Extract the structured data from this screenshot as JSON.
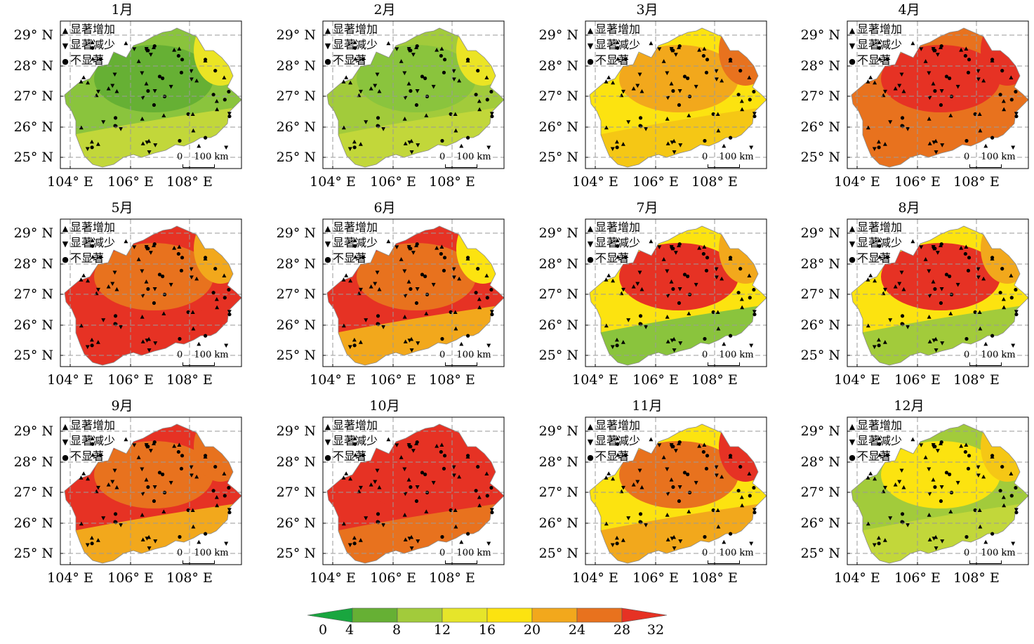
{
  "panels": [
    {
      "title": "1月",
      "colors": [
        "#8ac43d",
        "#66b034",
        "#c2d73a",
        "#ebe424"
      ]
    },
    {
      "title": "2月",
      "colors": [
        "#a2cb3b",
        "#8ac43d",
        "#c2d73a",
        "#ebe424"
      ]
    },
    {
      "title": "3月",
      "colors": [
        "#fce310",
        "#f2a81c",
        "#f5c715",
        "#e8721e"
      ]
    },
    {
      "title": "4月",
      "colors": [
        "#e8721e",
        "#e63224",
        "#e8721e",
        "#e63224"
      ]
    },
    {
      "title": "5月",
      "colors": [
        "#e63224",
        "#e8721e",
        "#e63224",
        "#f2a81c"
      ]
    },
    {
      "title": "6月",
      "colors": [
        "#e63224",
        "#e8721e",
        "#f2a81c",
        "#fce310"
      ]
    },
    {
      "title": "7月",
      "colors": [
        "#fce310",
        "#e63224",
        "#8ac43d",
        "#f2a81c"
      ]
    },
    {
      "title": "8月",
      "colors": [
        "#fce310",
        "#e63224",
        "#a2cb3b",
        "#f2a81c"
      ]
    },
    {
      "title": "9月",
      "colors": [
        "#e63224",
        "#e8721e",
        "#f2a81c",
        "#e8721e"
      ]
    },
    {
      "title": "10月",
      "colors": [
        "#e63224",
        "#e63224",
        "#e8721e",
        "#e63224"
      ]
    },
    {
      "title": "11月",
      "colors": [
        "#fce310",
        "#e8721e",
        "#f2a81c",
        "#e63224"
      ]
    },
    {
      "title": "12月",
      "colors": [
        "#a2cb3b",
        "#fce310",
        "#c2d73a",
        "#f5c715"
      ]
    }
  ],
  "axes": {
    "lat_labels": [
      "29° N",
      "28° N",
      "27° N",
      "26° N",
      "25° N"
    ],
    "lon_labels": [
      "104° E",
      "106° E",
      "108° E"
    ]
  },
  "legend": {
    "increase": "显著增加",
    "decrease": "显著减少",
    "not_significant": "不显著",
    "increase_symbol": "▲",
    "decrease_symbol": "▼",
    "not_significant_symbol": "●"
  },
  "scale": {
    "zero": "0",
    "label": "100 km"
  },
  "colorbar": {
    "ticks": [
      "0",
      "4",
      "8",
      "12",
      "16",
      "20",
      "24",
      "28",
      "32"
    ],
    "colors": [
      "#19a63f",
      "#66b034",
      "#a2cb3b",
      "#e6e52a",
      "#fce310",
      "#f2a81c",
      "#e8721e",
      "#e63224"
    ]
  }
}
